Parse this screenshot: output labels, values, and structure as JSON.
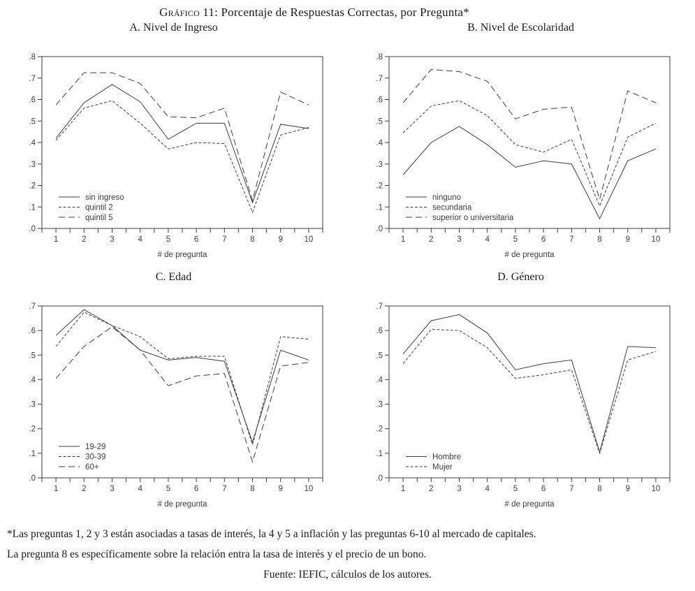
{
  "figure": {
    "title_prefix": "Gráfico 11:",
    "title_rest": " Porcentaje de Respuestas Correctas, por Pregunta*"
  },
  "footnotes": {
    "line1": "*Las preguntas 1, 2 y 3 están asociadas a tasas de interés, la 4 y 5 a inflación y las preguntas 6-10 al mercado de capitales.",
    "line2": "La pregunta 8 es específicamente sobre la relación entra la tasa de interés y el precio de un bono.",
    "line3": "Fuente: IEFIC, cálculos de los autores."
  },
  "style": {
    "line_color": "#3d3d3d",
    "text_color": "#3d3d3d",
    "background": "#ffffff"
  },
  "chart_data": [
    {
      "type": "line",
      "title": "A. Nivel de Ingreso",
      "xlabel": "# de pregunta",
      "x": [
        1,
        2,
        3,
        4,
        5,
        6,
        7,
        8,
        9,
        10
      ],
      "ylim": [
        0,
        0.8
      ],
      "ytick_labels": [
        ".0",
        ".1",
        ".2",
        ".3",
        ".4",
        ".5",
        ".6",
        ".7",
        ".8"
      ],
      "x_minor_ticks_every": 0.5,
      "grid": false,
      "legend_position": "lower-left",
      "series": [
        {
          "name": "sin ingreso",
          "line_style": "solid",
          "values": [
            0.42,
            0.585,
            0.67,
            0.59,
            0.415,
            0.49,
            0.49,
            0.12,
            0.485,
            0.465
          ]
        },
        {
          "name": "quintil 2",
          "line_style": "short-dash",
          "values": [
            0.41,
            0.56,
            0.595,
            0.49,
            0.37,
            0.4,
            0.395,
            0.075,
            0.435,
            0.47
          ]
        },
        {
          "name": "quintil 5",
          "line_style": "long-dash",
          "values": [
            0.575,
            0.725,
            0.725,
            0.675,
            0.52,
            0.515,
            0.56,
            0.13,
            0.635,
            0.575
          ]
        }
      ]
    },
    {
      "type": "line",
      "title": "B. Nivel de Escolaridad",
      "xlabel": "# de pregunta",
      "x": [
        1,
        2,
        3,
        4,
        5,
        6,
        7,
        8,
        9,
        10
      ],
      "ylim": [
        0,
        0.8
      ],
      "ytick_labels": [
        ".0",
        ".1",
        ".2",
        ".3",
        ".4",
        ".5",
        ".6",
        ".7",
        ".8"
      ],
      "x_minor_ticks_every": 0.5,
      "grid": false,
      "legend_position": "lower-left",
      "series": [
        {
          "name": "ninguno",
          "line_style": "solid",
          "values": [
            0.25,
            0.4,
            0.475,
            0.39,
            0.285,
            0.315,
            0.3,
            0.045,
            0.315,
            0.37
          ]
        },
        {
          "name": "secundaria",
          "line_style": "short-dash",
          "values": [
            0.445,
            0.57,
            0.595,
            0.525,
            0.39,
            0.355,
            0.415,
            0.105,
            0.425,
            0.49
          ]
        },
        {
          "name": "superior o universitaria",
          "line_style": "long-dash",
          "values": [
            0.585,
            0.74,
            0.73,
            0.685,
            0.51,
            0.555,
            0.565,
            0.135,
            0.64,
            0.585
          ]
        }
      ]
    },
    {
      "type": "line",
      "title": "C. Edad",
      "xlabel": "# de pregunta",
      "x": [
        1,
        2,
        3,
        4,
        5,
        6,
        7,
        8,
        9,
        10
      ],
      "ylim": [
        0,
        0.7
      ],
      "ytick_labels": [
        ".0",
        ".1",
        ".2",
        ".3",
        ".4",
        ".5",
        ".6",
        ".7"
      ],
      "x_minor_ticks_every": 0.5,
      "grid": false,
      "legend_position": "lower-left",
      "series": [
        {
          "name": "19-29",
          "line_style": "solid",
          "values": [
            0.58,
            0.685,
            0.62,
            0.52,
            0.48,
            0.49,
            0.475,
            0.145,
            0.52,
            0.48
          ]
        },
        {
          "name": "30-39",
          "line_style": "short-dash",
          "values": [
            0.535,
            0.675,
            0.62,
            0.575,
            0.485,
            0.495,
            0.495,
            0.135,
            0.575,
            0.565
          ]
        },
        {
          "name": "60+",
          "line_style": "long-dash",
          "values": [
            0.405,
            0.535,
            0.615,
            0.52,
            0.375,
            0.415,
            0.425,
            0.065,
            0.455,
            0.47
          ]
        }
      ]
    },
    {
      "type": "line",
      "title": "D. Género",
      "xlabel": "# de pregunta",
      "x": [
        1,
        2,
        3,
        4,
        5,
        6,
        7,
        8,
        9,
        10
      ],
      "ylim": [
        0,
        0.7
      ],
      "ytick_labels": [
        ".0",
        ".1",
        ".2",
        ".3",
        ".4",
        ".5",
        ".6",
        ".7"
      ],
      "x_minor_ticks_every": 0.5,
      "grid": false,
      "legend_position": "lower-left",
      "series": [
        {
          "name": "Hombre",
          "line_style": "solid",
          "values": [
            0.505,
            0.64,
            0.665,
            0.59,
            0.44,
            0.465,
            0.48,
            0.105,
            0.535,
            0.53
          ]
        },
        {
          "name": "Mujer",
          "line_style": "short-dash",
          "values": [
            0.465,
            0.605,
            0.6,
            0.53,
            0.405,
            0.42,
            0.44,
            0.1,
            0.48,
            0.515
          ]
        }
      ]
    }
  ]
}
